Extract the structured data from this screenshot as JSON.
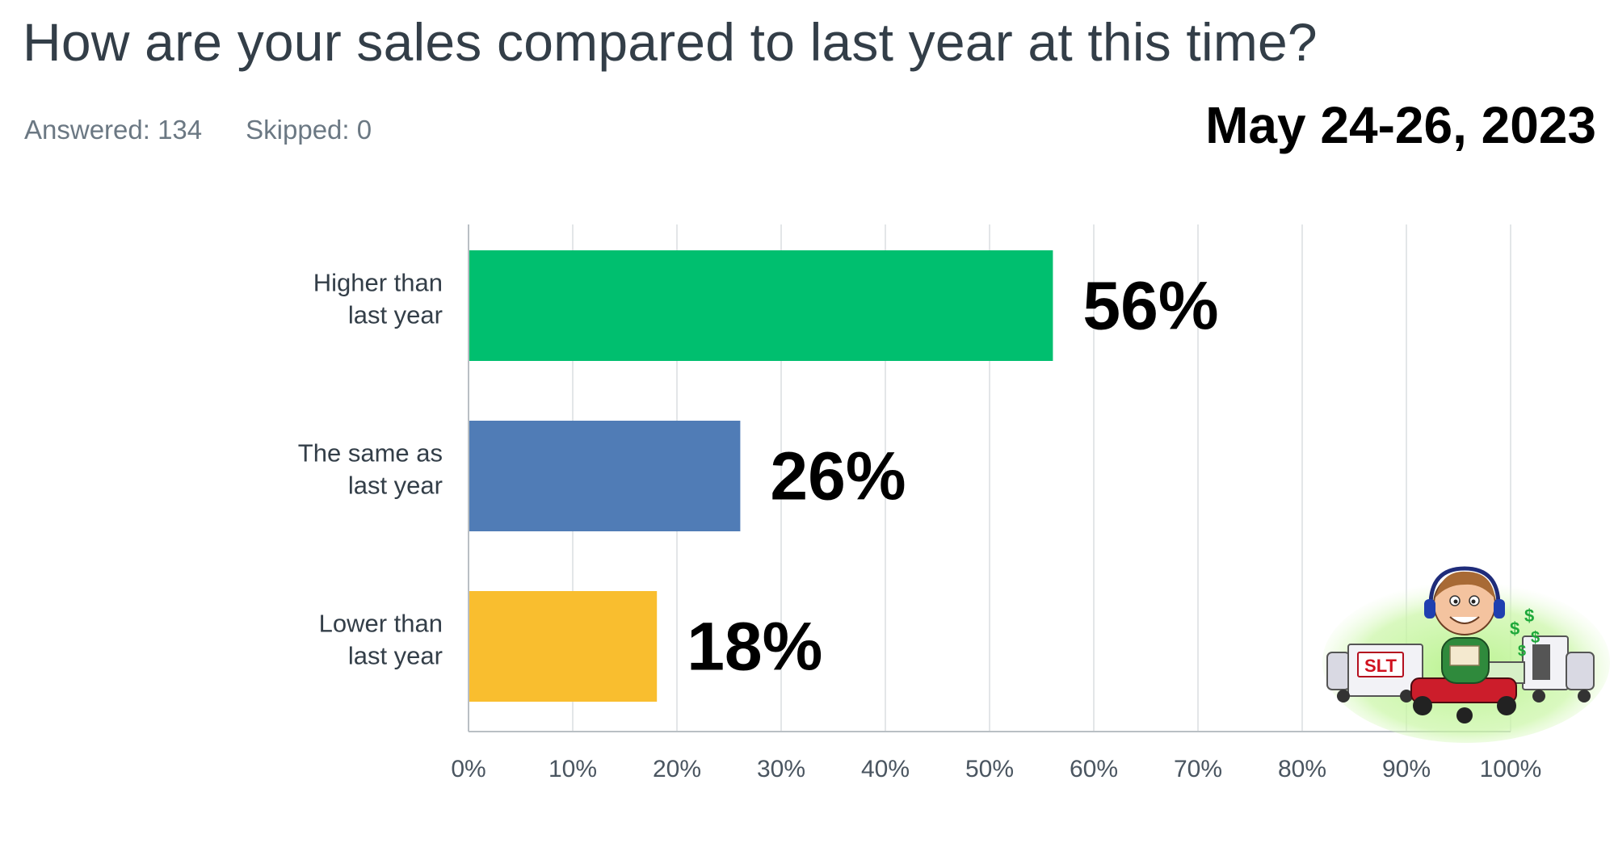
{
  "question": {
    "title": "How are your sales compared to last year at this time?",
    "answered": "Answered: 134",
    "skipped": "Skipped: 0",
    "date": "May 24-26, 2023"
  },
  "chart_data": {
    "type": "bar",
    "orientation": "horizontal",
    "categories": [
      [
        "Higher than",
        "last year"
      ],
      [
        "The same as",
        "last year"
      ],
      [
        "Lower than",
        "last year"
      ]
    ],
    "values": [
      56,
      26,
      18
    ],
    "value_labels": [
      "56%",
      "26%",
      "18%"
    ],
    "colors": [
      "#00bf6f",
      "#507cb6",
      "#f9be2f"
    ],
    "xlim": [
      0,
      100
    ],
    "x_ticks": [
      "0%",
      "10%",
      "20%",
      "30%",
      "40%",
      "50%",
      "60%",
      "70%",
      "80%",
      "90%",
      "100%"
    ],
    "grid": true,
    "legend": false
  },
  "logo": {
    "text": "SLT",
    "icons": [
      "cartoon-man-with-headphones-icon",
      "truck-icon",
      "lawn-mower-icon",
      "dollar-sign-icon"
    ]
  }
}
